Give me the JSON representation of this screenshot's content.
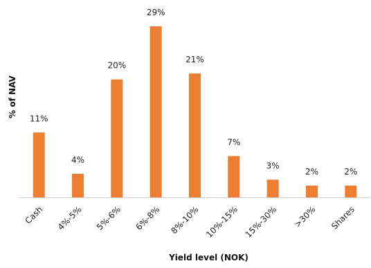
{
  "chart_data": {
    "type": "bar",
    "title": "",
    "xlabel": "Yield level (NOK)",
    "ylabel": "% of NAV",
    "categories": [
      "Cash",
      "4%-5%",
      "5%-6%",
      "6%-8%",
      "8%-10%",
      "10%-15%",
      "15%-30%",
      ">30%",
      "Shares"
    ],
    "values": [
      11,
      4,
      20,
      29,
      21,
      7,
      3,
      2,
      2
    ],
    "data_labels": [
      "11%",
      "4%",
      "20%",
      "29%",
      "21%",
      "7%",
      "3%",
      "2%",
      "2%"
    ],
    "ylim": [
      0,
      30
    ],
    "grid": false,
    "legend": "none",
    "bar_color": "#ED7D31"
  }
}
